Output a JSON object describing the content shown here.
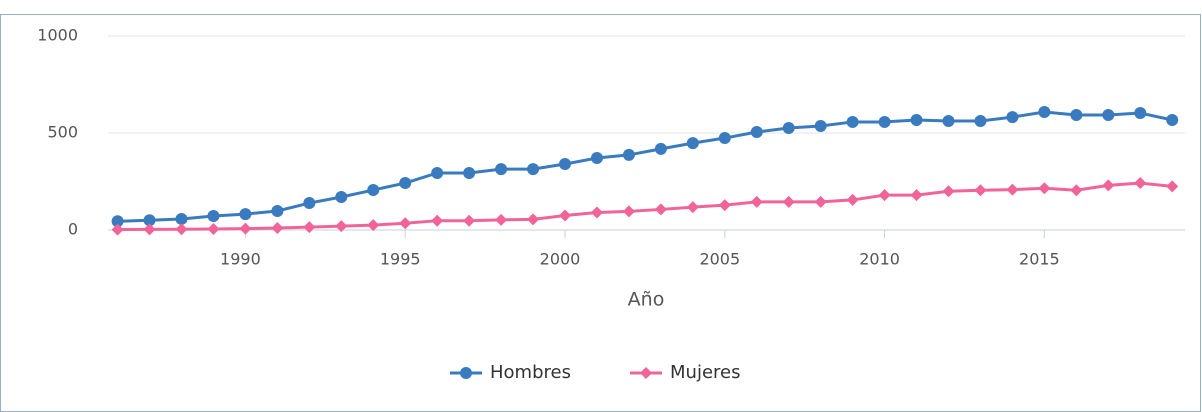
{
  "chart_data": {
    "type": "line",
    "x_label": "Año",
    "x": [
      1986,
      1987,
      1988,
      1989,
      1990,
      1991,
      1992,
      1993,
      1994,
      1995,
      1996,
      1997,
      1998,
      1999,
      2000,
      2001,
      2002,
      2003,
      2004,
      2005,
      2006,
      2007,
      2008,
      2009,
      2010,
      2011,
      2012,
      2013,
      2014,
      2015,
      2016,
      2017,
      2018,
      2019
    ],
    "series": [
      {
        "name": "Hombres",
        "color": "#3a7bbf",
        "marker": "circle",
        "values": [
          45,
          50,
          57,
          72,
          82,
          98,
          139,
          170,
          206,
          242,
          294,
          294,
          314,
          314,
          340,
          371,
          387,
          418,
          448,
          474,
          505,
          526,
          536,
          557,
          557,
          567,
          562,
          562,
          582,
          608,
          593,
          593,
          603,
          567
        ]
      },
      {
        "name": "Mujeres",
        "color": "#f0649a",
        "marker": "diamond",
        "values": [
          2,
          3,
          4,
          5,
          7,
          10,
          15,
          20,
          25,
          35,
          48,
          48,
          52,
          55,
          75,
          90,
          96,
          106,
          118,
          128,
          145,
          145,
          145,
          155,
          180,
          180,
          200,
          205,
          208,
          215,
          205,
          230,
          242,
          225
        ]
      }
    ],
    "xlim": [
      1985.7,
      2019.4
    ],
    "xticks": [
      1990,
      1995,
      2000,
      2005,
      2010,
      2015
    ],
    "ylim": [
      0,
      1000
    ],
    "yticks": [
      0,
      500,
      1000
    ],
    "grid": true,
    "legend": "bottom"
  }
}
